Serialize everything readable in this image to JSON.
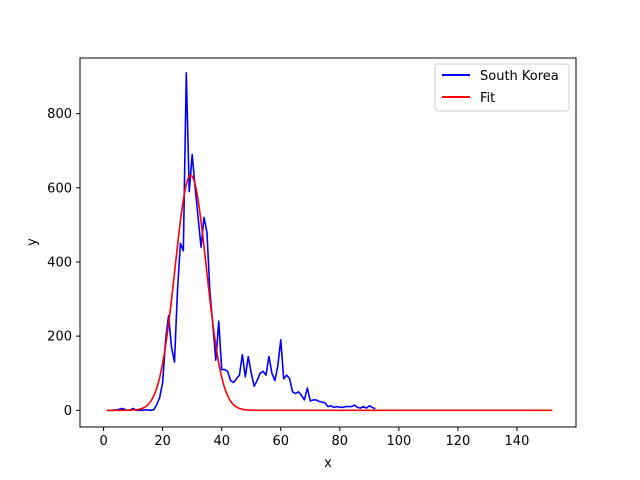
{
  "chart_data": {
    "type": "line",
    "title": "",
    "xlabel": "x",
    "ylabel": "y",
    "xlim": [
      -8,
      160
    ],
    "ylim": [
      -45,
      950
    ],
    "xticks": [
      0,
      20,
      40,
      60,
      80,
      100,
      120,
      140
    ],
    "yticks": [
      0,
      200,
      400,
      600,
      800
    ],
    "grid": false,
    "legend": "upper right",
    "series": [
      {
        "name": "South Korea",
        "color": "#0000ff",
        "x": [
          1,
          2,
          3,
          4,
          5,
          6,
          7,
          8,
          9,
          10,
          11,
          12,
          13,
          14,
          15,
          16,
          17,
          18,
          19,
          20,
          21,
          22,
          23,
          24,
          25,
          26,
          27,
          28,
          29,
          30,
          31,
          32,
          33,
          34,
          35,
          36,
          37,
          38,
          39,
          40,
          41,
          42,
          43,
          44,
          45,
          46,
          47,
          48,
          49,
          50,
          51,
          52,
          53,
          54,
          55,
          56,
          57,
          58,
          59,
          60,
          61,
          62,
          63,
          64,
          65,
          66,
          67,
          68,
          69,
          70,
          71,
          72,
          73,
          74,
          75,
          76,
          77,
          78,
          79,
          80,
          81,
          82,
          83,
          84,
          85,
          86,
          87,
          88,
          89,
          90,
          91,
          92
        ],
        "y": [
          0,
          0,
          0,
          1,
          2,
          5,
          3,
          0,
          1,
          5,
          0,
          0,
          0,
          1,
          1,
          0,
          2,
          15,
          35,
          75,
          190,
          255,
          170,
          130,
          320,
          450,
          430,
          910,
          590,
          690,
          600,
          520,
          440,
          520,
          480,
          320,
          230,
          135,
          240,
          110,
          110,
          105,
          80,
          75,
          85,
          95,
          150,
          90,
          145,
          100,
          65,
          80,
          100,
          105,
          95,
          145,
          100,
          80,
          120,
          190,
          85,
          95,
          85,
          50,
          45,
          50,
          40,
          28,
          60,
          25,
          28,
          28,
          24,
          22,
          20,
          10,
          12,
          8,
          10,
          8,
          8,
          10,
          10,
          10,
          14,
          8,
          6,
          10,
          6,
          12,
          8,
          4
        ]
      },
      {
        "name": "Fit",
        "color": "#ff0000",
        "gauss": {
          "amplitude": 634,
          "center": 29.5,
          "sigma": 5.3,
          "x_start": 1,
          "x_end": 152
        }
      }
    ]
  }
}
